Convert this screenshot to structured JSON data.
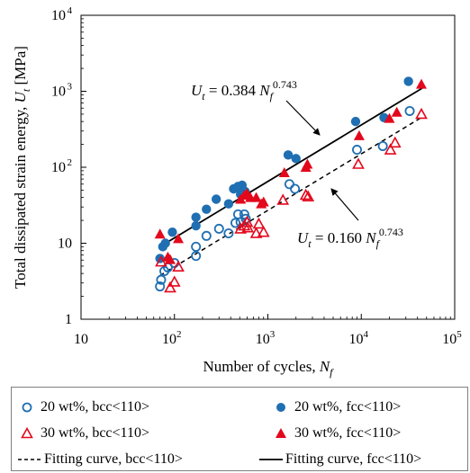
{
  "colors": {
    "blue": "#1f6fb2",
    "red": "#e3081c",
    "black": "#000000"
  },
  "chart_data": {
    "type": "scatter",
    "xscale": "log",
    "yscale": "log",
    "xlim": [
      10,
      100000
    ],
    "ylim": [
      1,
      10000
    ],
    "xlabel_main": "Number of cycles, ",
    "xlabel_var": "N",
    "xlabel_sub": "f",
    "ylabel_main": "Total dissipated strain energy, ",
    "ylabel_var": "U",
    "ylabel_sub": "t",
    "ylabel_unit": " [MPa]",
    "x_ticks": [
      {
        "value": 10,
        "base": "10",
        "exp": ""
      },
      {
        "value": 100,
        "base": "10",
        "exp": "2"
      },
      {
        "value": 1000,
        "base": "10",
        "exp": "3"
      },
      {
        "value": 10000,
        "base": "10",
        "exp": "4"
      },
      {
        "value": 100000,
        "base": "10",
        "exp": "5"
      }
    ],
    "y_ticks": [
      {
        "value": 1,
        "base": "1",
        "exp": ""
      },
      {
        "value": 10,
        "base": "10",
        "exp": ""
      },
      {
        "value": 100,
        "base": "10",
        "exp": "2"
      },
      {
        "value": 1000,
        "base": "10",
        "exp": "3"
      },
      {
        "value": 10000,
        "base": "10",
        "exp": "4"
      }
    ],
    "series": [
      {
        "name": "20 wt%, bcc<110>",
        "marker": "circle-open",
        "color": "#1f6fb2",
        "points": [
          [
            70,
            2.7
          ],
          [
            72,
            3.3
          ],
          [
            78,
            4.3
          ],
          [
            85,
            4.8
          ],
          [
            100,
            5.5
          ],
          [
            170,
            6.8
          ],
          [
            170,
            9.0
          ],
          [
            220,
            12.5
          ],
          [
            300,
            15.5
          ],
          [
            380,
            13.5
          ],
          [
            450,
            18.5
          ],
          [
            480,
            24
          ],
          [
            510,
            19
          ],
          [
            560,
            24
          ],
          [
            580,
            21
          ],
          [
            1700,
            60
          ],
          [
            1950,
            52
          ],
          [
            9000,
            170
          ],
          [
            17000,
            190
          ],
          [
            33000,
            550
          ]
        ]
      },
      {
        "name": "20 wt%, fcc<110>",
        "marker": "circle-filled",
        "color": "#1f6fb2",
        "points": [
          [
            70,
            6.3
          ],
          [
            75,
            9.0
          ],
          [
            80,
            10.0
          ],
          [
            95,
            14.0
          ],
          [
            170,
            17.0
          ],
          [
            170,
            22.0
          ],
          [
            220,
            28.0
          ],
          [
            280,
            38.0
          ],
          [
            380,
            33.0
          ],
          [
            430,
            52.0
          ],
          [
            480,
            56.0
          ],
          [
            510,
            44.0
          ],
          [
            530,
            58.0
          ],
          [
            570,
            48.0
          ],
          [
            1650,
            145.0
          ],
          [
            2000,
            130.0
          ],
          [
            8700,
            400.0
          ],
          [
            17500,
            450.0
          ],
          [
            32000,
            1350.0
          ]
        ]
      },
      {
        "name": "30 wt%, bcc<110>",
        "marker": "triangle-open",
        "color": "#e3081c",
        "points": [
          [
            72,
            5.7
          ],
          [
            90,
            2.6
          ],
          [
            100,
            3.1
          ],
          [
            110,
            4.9
          ],
          [
            510,
            15.5
          ],
          [
            560,
            17
          ],
          [
            600,
            19
          ],
          [
            610,
            16
          ],
          [
            750,
            13.5
          ],
          [
            800,
            18
          ],
          [
            900,
            14
          ],
          [
            1450,
            37
          ],
          [
            2550,
            43
          ],
          [
            2700,
            41
          ],
          [
            9300,
            110
          ],
          [
            20500,
            170
          ],
          [
            23000,
            210
          ],
          [
            44000,
            500
          ]
        ]
      },
      {
        "name": "30 wt%, fcc<110>",
        "marker": "triangle-filled",
        "color": "#e3081c",
        "points": [
          [
            70,
            13.2
          ],
          [
            85,
            6.6
          ],
          [
            90,
            6.1
          ],
          [
            110,
            11.5
          ],
          [
            510,
            38
          ],
          [
            560,
            43
          ],
          [
            600,
            45
          ],
          [
            650,
            40
          ],
          [
            750,
            40
          ],
          [
            850,
            33
          ],
          [
            900,
            35
          ],
          [
            1500,
            85
          ],
          [
            2550,
            100
          ],
          [
            2650,
            110
          ],
          [
            9500,
            260
          ],
          [
            20000,
            440
          ],
          [
            24000,
            530
          ],
          [
            44000,
            1240
          ]
        ]
      }
    ],
    "fits": [
      {
        "name": "Fitting curve, bcc<110>",
        "style": "dashed",
        "coef": 0.16,
        "exponent": 0.743,
        "x_range": [
          70,
          45000
        ]
      },
      {
        "name": "Fitting curve, fcc<110>",
        "style": "solid",
        "coef": 0.384,
        "exponent": 0.743,
        "x_range": [
          70,
          45000
        ]
      }
    ],
    "annotations": [
      {
        "sym": "U",
        "sub": "t",
        "rest": " = 0.384 ",
        "var": "N",
        "var_sub": "f",
        "exp": "0.743"
      },
      {
        "sym": "U",
        "sub": "t",
        "rest": " = 0.160 ",
        "var": "N",
        "var_sub": "f",
        "exp": "0.743"
      }
    ],
    "legend_position": "bottom",
    "grid": false
  }
}
